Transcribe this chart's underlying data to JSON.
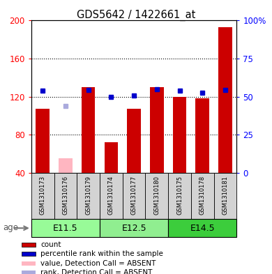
{
  "title": "GDS5642 / 1422661_at",
  "samples": [
    "GSM1310173",
    "GSM1310176",
    "GSM1310179",
    "GSM1310174",
    "GSM1310177",
    "GSM1310180",
    "GSM1310175",
    "GSM1310178",
    "GSM1310181"
  ],
  "counts": [
    107,
    null,
    130,
    72,
    107,
    130,
    120,
    118,
    193
  ],
  "absent_counts": [
    null,
    55,
    null,
    null,
    null,
    null,
    null,
    null,
    null
  ],
  "percentile_ranks": [
    126,
    null,
    127,
    120,
    121,
    128,
    126,
    124,
    127
  ],
  "absent_ranks": [
    null,
    110,
    null,
    null,
    null,
    null,
    null,
    null,
    null
  ],
  "ylim": [
    40,
    200
  ],
  "yticks": [
    40,
    80,
    120,
    160,
    200
  ],
  "y2ticks_val": [
    0,
    25,
    50,
    75,
    100
  ],
  "y2ticks_pos": [
    40,
    80,
    120,
    160,
    200
  ],
  "groups": [
    {
      "label": "E11.5",
      "start": 0,
      "end": 3,
      "color": "#98FB98"
    },
    {
      "label": "E12.5",
      "start": 3,
      "end": 6,
      "color": "#90EE90"
    },
    {
      "label": "E14.5",
      "start": 6,
      "end": 9,
      "color": "#00EE00"
    }
  ],
  "age_label": "age",
  "bar_color": "#CC0000",
  "absent_bar_color": "#FFB6C1",
  "rank_color": "#0000CC",
  "absent_rank_color": "#AAAADD",
  "sample_bg_color": "#D3D3D3",
  "legend_items": [
    {
      "color": "#CC0000",
      "label": "count",
      "marker": "square"
    },
    {
      "color": "#0000CC",
      "label": "percentile rank within the sample",
      "marker": "square"
    },
    {
      "color": "#FFB6C1",
      "label": "value, Detection Call = ABSENT",
      "marker": "square"
    },
    {
      "color": "#AAAADD",
      "label": "rank, Detection Call = ABSENT",
      "marker": "square"
    }
  ]
}
